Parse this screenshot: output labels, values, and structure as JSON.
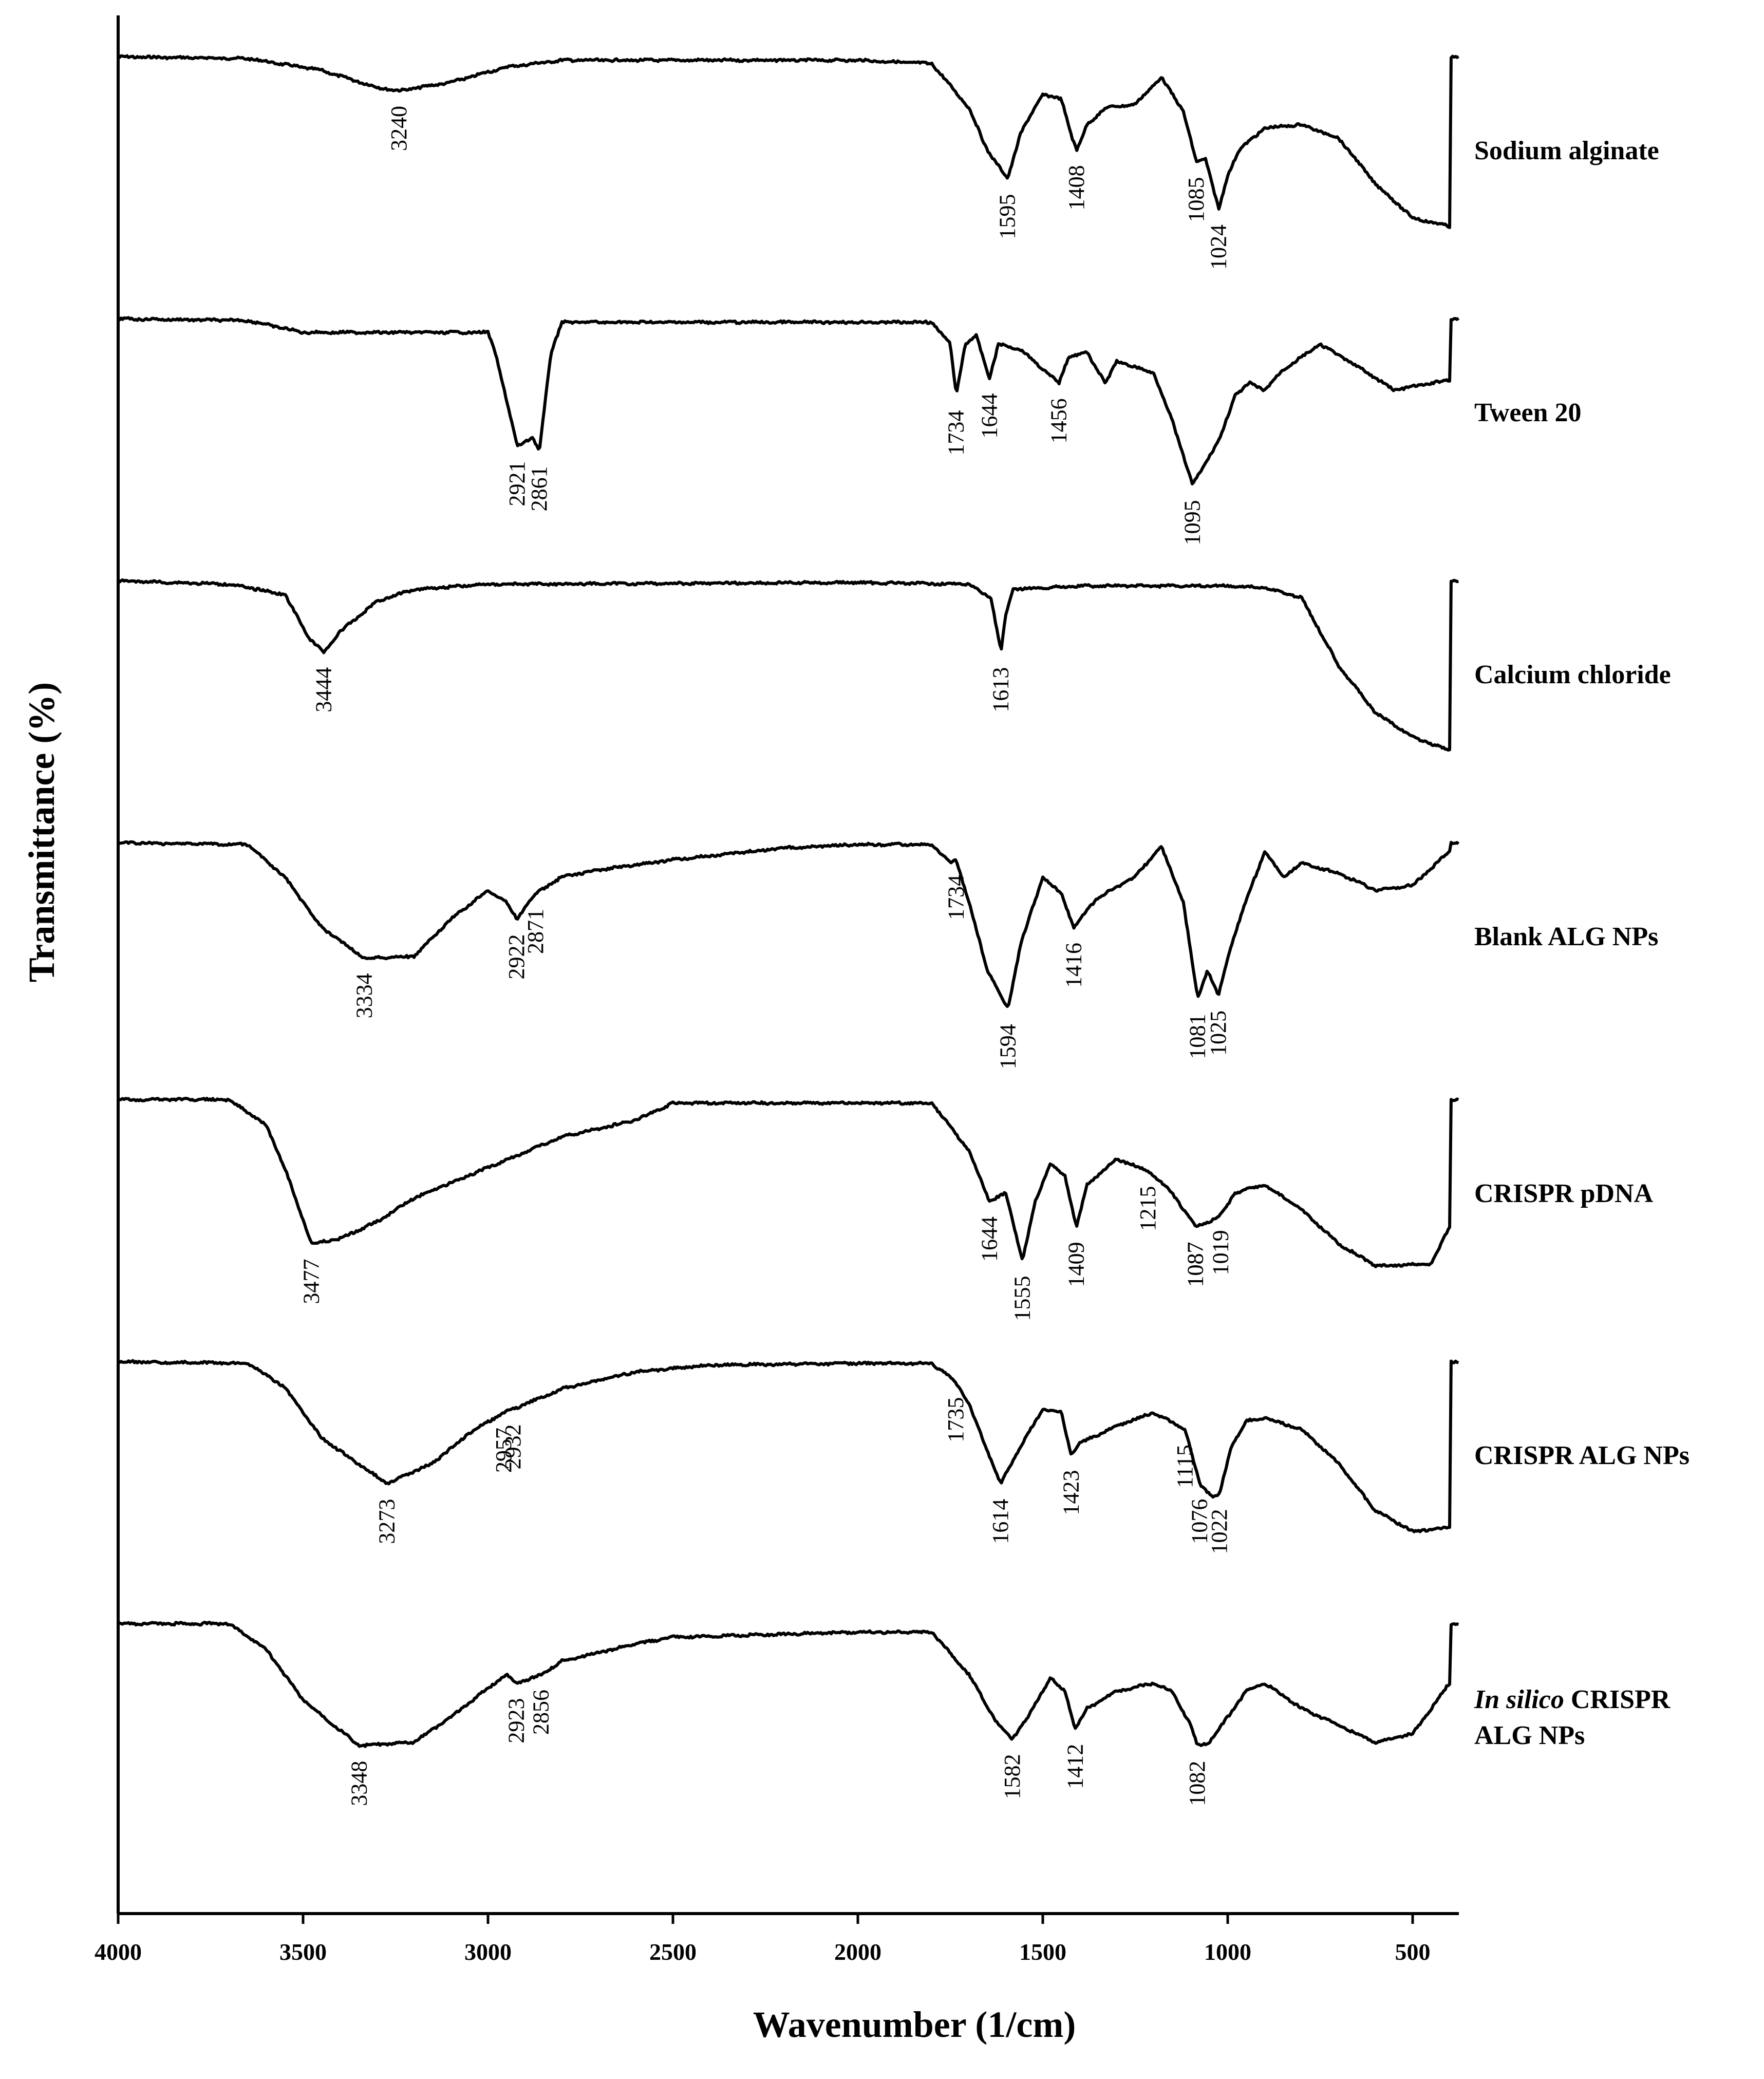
{
  "chart_data": {
    "type": "line",
    "xlabel": "Wavenumber (1/cm)",
    "ylabel": "Transmittance (%)",
    "xlim": [
      4000,
      375
    ],
    "x_reversed": true,
    "xticks": [
      4000,
      3500,
      3000,
      2500,
      2000,
      1500,
      1000,
      500
    ],
    "grid": false,
    "legend": "labels-right",
    "line_color": "#000000",
    "series": [
      {
        "name": "Sodium alginate",
        "points": [
          [
            4000,
            0
          ],
          [
            3650,
            0.01
          ],
          [
            3450,
            0.08
          ],
          [
            3300,
            0.18
          ],
          [
            3240,
            0.2
          ],
          [
            3100,
            0.15
          ],
          [
            2950,
            0.06
          ],
          [
            2800,
            0.02
          ],
          [
            2000,
            0.02
          ],
          [
            1800,
            0.04
          ],
          [
            1700,
            0.3
          ],
          [
            1650,
            0.55
          ],
          [
            1595,
            0.72
          ],
          [
            1560,
            0.45
          ],
          [
            1500,
            0.22
          ],
          [
            1450,
            0.25
          ],
          [
            1420,
            0.48
          ],
          [
            1408,
            0.55
          ],
          [
            1380,
            0.4
          ],
          [
            1330,
            0.3
          ],
          [
            1250,
            0.28
          ],
          [
            1180,
            0.12
          ],
          [
            1120,
            0.32
          ],
          [
            1085,
            0.62
          ],
          [
            1060,
            0.6
          ],
          [
            1024,
            0.9
          ],
          [
            1000,
            0.7
          ],
          [
            970,
            0.55
          ],
          [
            900,
            0.42
          ],
          [
            800,
            0.4
          ],
          [
            700,
            0.48
          ],
          [
            600,
            0.75
          ],
          [
            500,
            0.95
          ],
          [
            400,
            1.0
          ]
        ],
        "peaks": [
          3240,
          1595,
          1408,
          1085,
          1024
        ]
      },
      {
        "name": "Tween 20",
        "points": [
          [
            4000,
            0
          ],
          [
            3650,
            0.01
          ],
          [
            3500,
            0.08
          ],
          [
            3300,
            0.08
          ],
          [
            3000,
            0.08
          ],
          [
            2980,
            0.2
          ],
          [
            2921,
            0.75
          ],
          [
            2880,
            0.7
          ],
          [
            2861,
            0.78
          ],
          [
            2830,
            0.2
          ],
          [
            2800,
            0.02
          ],
          [
            1800,
            0.02
          ],
          [
            1750,
            0.15
          ],
          [
            1734,
            0.45
          ],
          [
            1710,
            0.15
          ],
          [
            1680,
            0.1
          ],
          [
            1644,
            0.35
          ],
          [
            1620,
            0.15
          ],
          [
            1560,
            0.18
          ],
          [
            1456,
            0.38
          ],
          [
            1430,
            0.22
          ],
          [
            1380,
            0.2
          ],
          [
            1330,
            0.38
          ],
          [
            1300,
            0.25
          ],
          [
            1200,
            0.32
          ],
          [
            1150,
            0.6
          ],
          [
            1095,
            0.98
          ],
          [
            1060,
            0.85
          ],
          [
            1020,
            0.7
          ],
          [
            980,
            0.45
          ],
          [
            940,
            0.38
          ],
          [
            900,
            0.42
          ],
          [
            850,
            0.3
          ],
          [
            750,
            0.15
          ],
          [
            650,
            0.28
          ],
          [
            550,
            0.42
          ],
          [
            450,
            0.38
          ],
          [
            400,
            0.36
          ]
        ],
        "peaks": [
          2921,
          2861,
          1734,
          1644,
          1456,
          1095
        ]
      },
      {
        "name": "Calcium chloride",
        "points": [
          [
            4000,
            0
          ],
          [
            3700,
            0.02
          ],
          [
            3550,
            0.08
          ],
          [
            3480,
            0.35
          ],
          [
            3444,
            0.42
          ],
          [
            3400,
            0.3
          ],
          [
            3300,
            0.12
          ],
          [
            3200,
            0.05
          ],
          [
            3000,
            0.02
          ],
          [
            2000,
            0.01
          ],
          [
            1700,
            0.02
          ],
          [
            1640,
            0.1
          ],
          [
            1613,
            0.42
          ],
          [
            1600,
            0.2
          ],
          [
            1580,
            0.05
          ],
          [
            1400,
            0.03
          ],
          [
            1000,
            0.03
          ],
          [
            900,
            0.04
          ],
          [
            800,
            0.1
          ],
          [
            700,
            0.5
          ],
          [
            600,
            0.78
          ],
          [
            500,
            0.92
          ],
          [
            400,
            1.0
          ]
        ],
        "peaks": [
          3444,
          1613
        ]
      },
      {
        "name": "Blank ALG NPs",
        "points": [
          [
            4000,
            0
          ],
          [
            3650,
            0.01
          ],
          [
            3550,
            0.2
          ],
          [
            3450,
            0.5
          ],
          [
            3334,
            0.68
          ],
          [
            3200,
            0.67
          ],
          [
            3100,
            0.45
          ],
          [
            3000,
            0.28
          ],
          [
            2950,
            0.35
          ],
          [
            2922,
            0.45
          ],
          [
            2890,
            0.35
          ],
          [
            2871,
            0.3
          ],
          [
            2800,
            0.2
          ],
          [
            2700,
            0.16
          ],
          [
            2500,
            0.1
          ],
          [
            2200,
            0.03
          ],
          [
            2000,
            0.01
          ],
          [
            1800,
            0.01
          ],
          [
            1750,
            0.12
          ],
          [
            1734,
            0.1
          ],
          [
            1700,
            0.35
          ],
          [
            1650,
            0.75
          ],
          [
            1594,
            0.98
          ],
          [
            1560,
            0.6
          ],
          [
            1500,
            0.2
          ],
          [
            1450,
            0.3
          ],
          [
            1416,
            0.5
          ],
          [
            1400,
            0.45
          ],
          [
            1350,
            0.32
          ],
          [
            1250,
            0.2
          ],
          [
            1180,
            0.02
          ],
          [
            1120,
            0.35
          ],
          [
            1081,
            0.92
          ],
          [
            1055,
            0.75
          ],
          [
            1025,
            0.9
          ],
          [
            990,
            0.6
          ],
          [
            960,
            0.4
          ],
          [
            900,
            0.05
          ],
          [
            850,
            0.2
          ],
          [
            800,
            0.12
          ],
          [
            700,
            0.18
          ],
          [
            600,
            0.28
          ],
          [
            500,
            0.25
          ],
          [
            400,
            0.05
          ]
        ],
        "peaks": [
          3334,
          2922,
          2871,
          1734,
          1594,
          1416,
          1081,
          1025
        ]
      },
      {
        "name": "CRISPR pDNA",
        "points": [
          [
            4000,
            0
          ],
          [
            3700,
            0
          ],
          [
            3600,
            0.15
          ],
          [
            3550,
            0.4
          ],
          [
            3477,
            0.85
          ],
          [
            3400,
            0.82
          ],
          [
            3300,
            0.72
          ],
          [
            3200,
            0.58
          ],
          [
            3000,
            0.4
          ],
          [
            2800,
            0.22
          ],
          [
            2600,
            0.12
          ],
          [
            2500,
            0.02
          ],
          [
            2000,
            0.02
          ],
          [
            1800,
            0.02
          ],
          [
            1700,
            0.3
          ],
          [
            1644,
            0.6
          ],
          [
            1600,
            0.55
          ],
          [
            1555,
            0.95
          ],
          [
            1520,
            0.6
          ],
          [
            1480,
            0.38
          ],
          [
            1440,
            0.45
          ],
          [
            1409,
            0.75
          ],
          [
            1380,
            0.5
          ],
          [
            1300,
            0.35
          ],
          [
            1215,
            0.42
          ],
          [
            1150,
            0.55
          ],
          [
            1087,
            0.75
          ],
          [
            1050,
            0.72
          ],
          [
            1019,
            0.68
          ],
          [
            980,
            0.55
          ],
          [
            900,
            0.5
          ],
          [
            800,
            0.65
          ],
          [
            700,
            0.85
          ],
          [
            600,
            0.98
          ],
          [
            450,
            0.97
          ],
          [
            400,
            0.75
          ]
        ],
        "peaks": [
          3477,
          1644,
          1555,
          1409,
          1215,
          1087,
          1087,
          1019
        ]
      },
      {
        "name": "CRISPR ALG NPs",
        "points": [
          [
            4000,
            0
          ],
          [
            3650,
            0.01
          ],
          [
            3550,
            0.15
          ],
          [
            3450,
            0.45
          ],
          [
            3273,
            0.72
          ],
          [
            3150,
            0.6
          ],
          [
            3050,
            0.42
          ],
          [
            2957,
            0.3
          ],
          [
            2932,
            0.28
          ],
          [
            2800,
            0.16
          ],
          [
            2600,
            0.06
          ],
          [
            2400,
            0.02
          ],
          [
            2000,
            0.01
          ],
          [
            1800,
            0.01
          ],
          [
            1735,
            0.12
          ],
          [
            1700,
            0.25
          ],
          [
            1614,
            0.72
          ],
          [
            1560,
            0.5
          ],
          [
            1500,
            0.28
          ],
          [
            1450,
            0.3
          ],
          [
            1423,
            0.55
          ],
          [
            1400,
            0.48
          ],
          [
            1300,
            0.38
          ],
          [
            1200,
            0.3
          ],
          [
            1115,
            0.4
          ],
          [
            1076,
            0.72
          ],
          [
            1040,
            0.8
          ],
          [
            1022,
            0.78
          ],
          [
            990,
            0.5
          ],
          [
            950,
            0.35
          ],
          [
            900,
            0.33
          ],
          [
            800,
            0.4
          ],
          [
            700,
            0.6
          ],
          [
            600,
            0.88
          ],
          [
            500,
            1.0
          ],
          [
            400,
            0.98
          ]
        ],
        "peaks": [
          3273,
          2957,
          2932,
          1735,
          1614,
          1423,
          1115,
          1076,
          1022
        ]
      },
      {
        "name": "In silico CRISPR ALG NPs",
        "points": [
          [
            4000,
            0
          ],
          [
            3700,
            0
          ],
          [
            3600,
            0.15
          ],
          [
            3500,
            0.45
          ],
          [
            3348,
            0.72
          ],
          [
            3200,
            0.7
          ],
          [
            3100,
            0.55
          ],
          [
            3000,
            0.38
          ],
          [
            2950,
            0.3
          ],
          [
            2923,
            0.35
          ],
          [
            2880,
            0.32
          ],
          [
            2856,
            0.3
          ],
          [
            2800,
            0.22
          ],
          [
            2600,
            0.12
          ],
          [
            2500,
            0.08
          ],
          [
            2000,
            0.05
          ],
          [
            1800,
            0.05
          ],
          [
            1700,
            0.3
          ],
          [
            1620,
            0.6
          ],
          [
            1582,
            0.68
          ],
          [
            1540,
            0.55
          ],
          [
            1480,
            0.32
          ],
          [
            1440,
            0.4
          ],
          [
            1412,
            0.62
          ],
          [
            1380,
            0.5
          ],
          [
            1300,
            0.4
          ],
          [
            1200,
            0.35
          ],
          [
            1150,
            0.4
          ],
          [
            1100,
            0.6
          ],
          [
            1082,
            0.72
          ],
          [
            1050,
            0.7
          ],
          [
            1000,
            0.55
          ],
          [
            950,
            0.4
          ],
          [
            900,
            0.35
          ],
          [
            800,
            0.5
          ],
          [
            700,
            0.6
          ],
          [
            600,
            0.7
          ],
          [
            500,
            0.65
          ],
          [
            400,
            0.35
          ]
        ],
        "peaks": [
          3348,
          2923,
          2856,
          1582,
          1412,
          1082
        ]
      }
    ],
    "label_lines": {
      "s0": [
        "Sodium alginate"
      ],
      "s1": [
        "Tween 20"
      ],
      "s2": [
        "Calcium chloride"
      ],
      "s3": [
        "Blank ALG NPs"
      ],
      "s4": [
        "CRISPR pDNA"
      ],
      "s5": [
        "CRISPR ALG NPs"
      ],
      "s6": [
        "In silico CRISPR",
        "ALG NPs"
      ]
    }
  }
}
